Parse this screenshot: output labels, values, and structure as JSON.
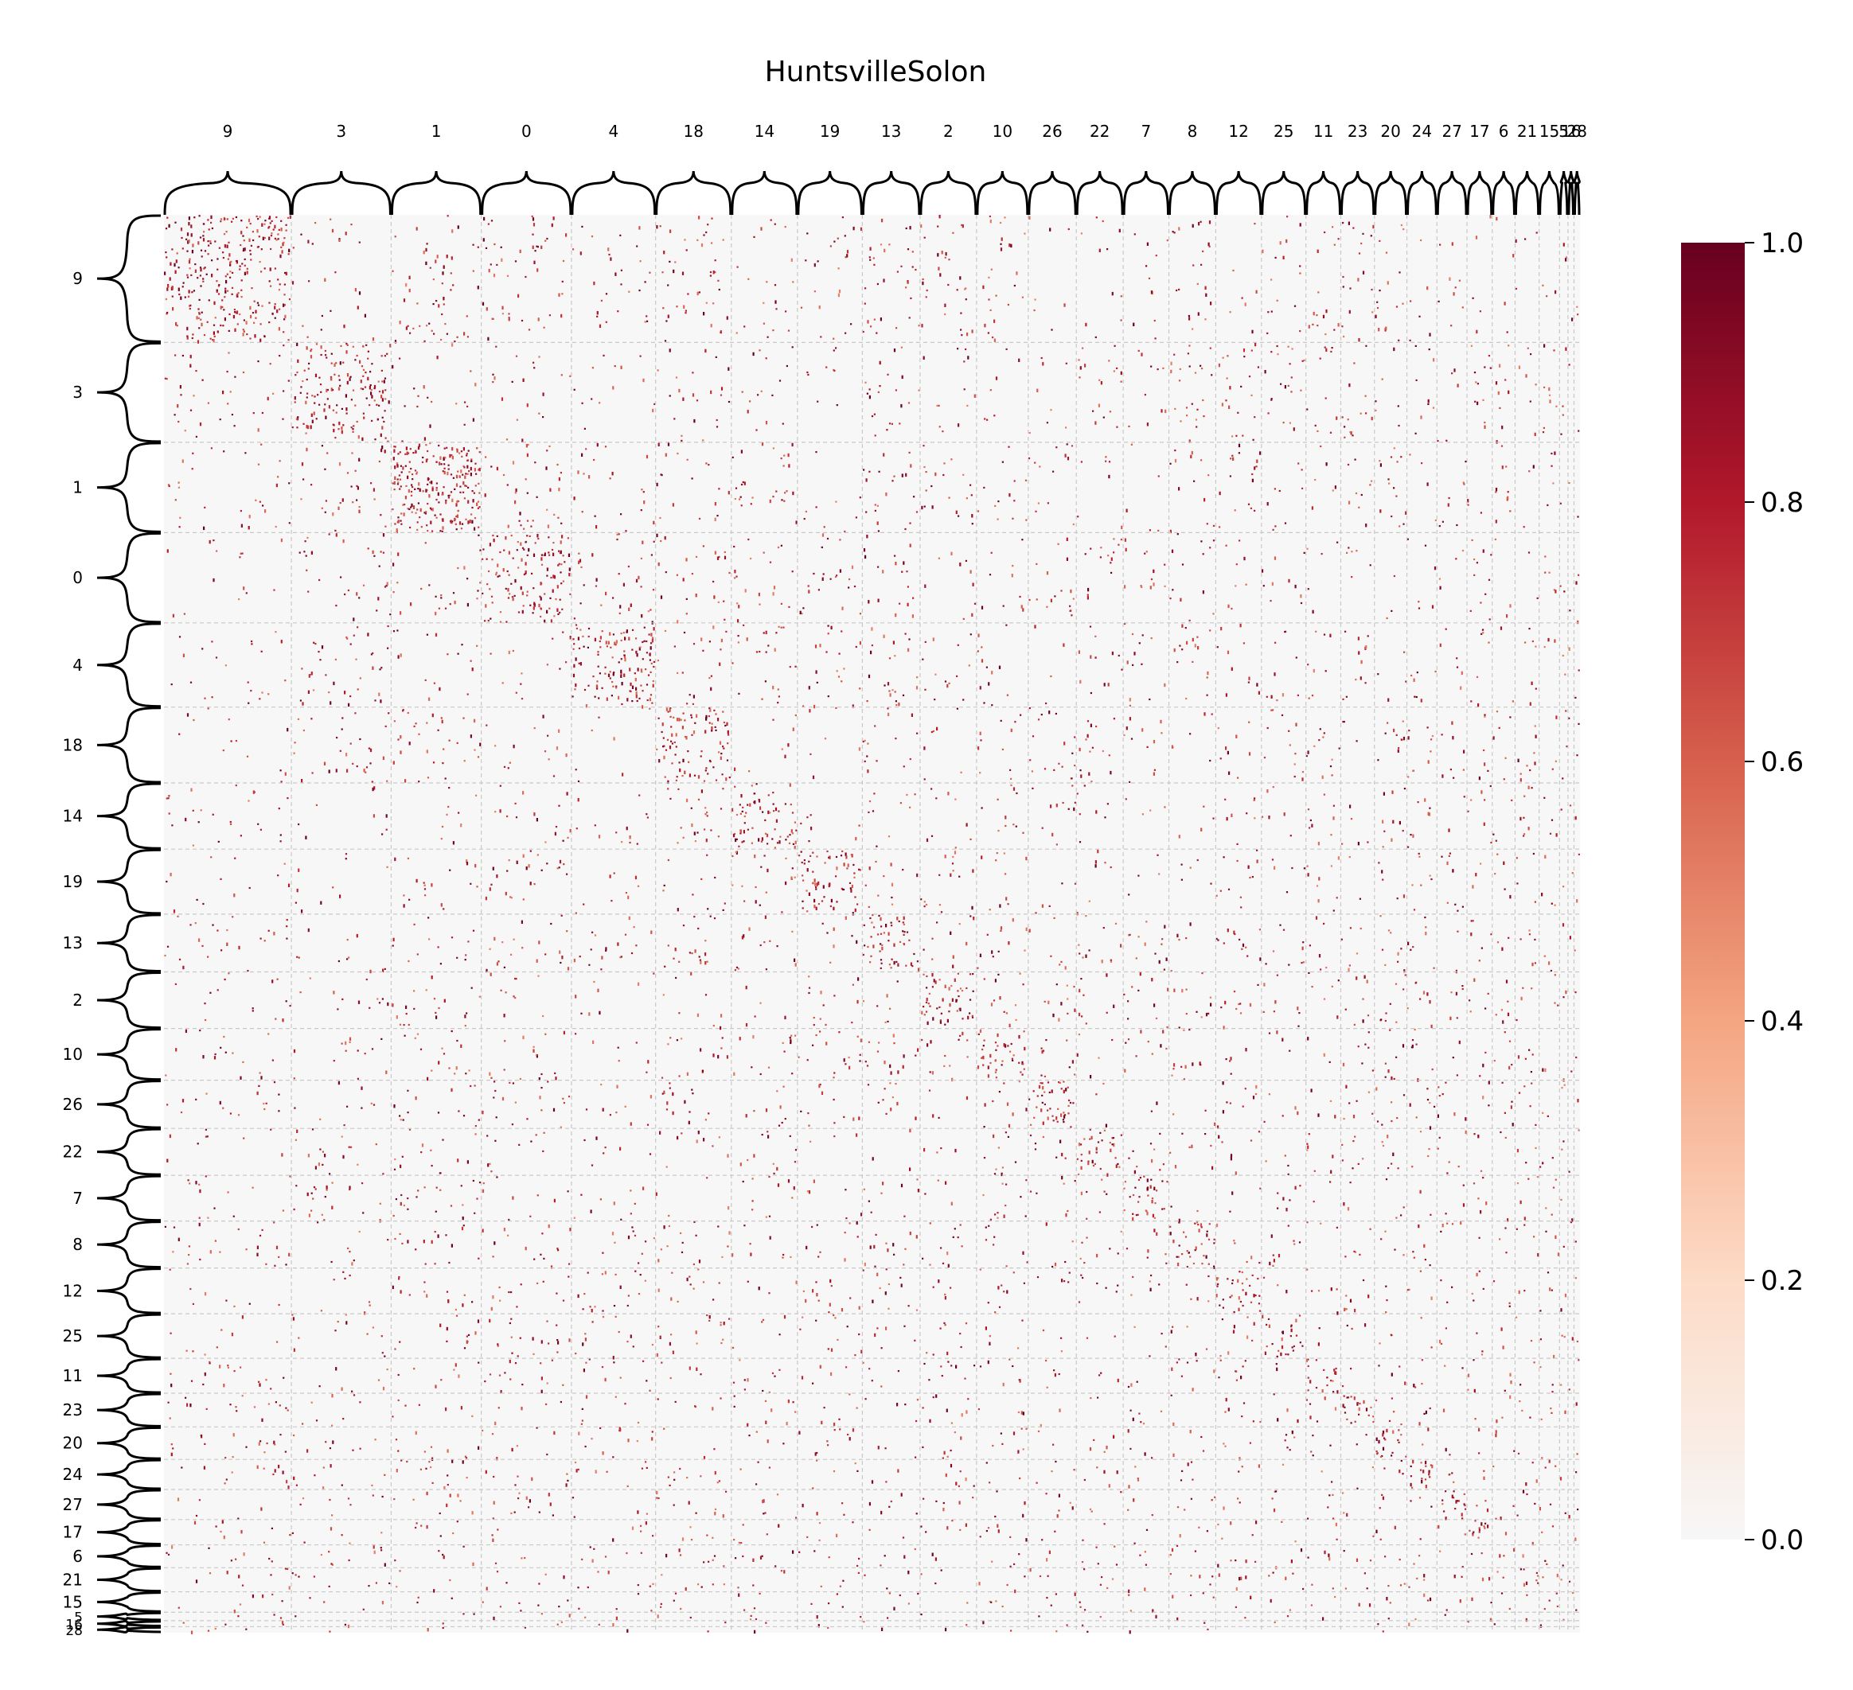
{
  "chart_data": {
    "type": "heatmap",
    "title": "HuntsvilleSolon",
    "xlabel": "",
    "ylabel": "",
    "block_order": [
      "9",
      "3",
      "1",
      "0",
      "4",
      "18",
      "14",
      "19",
      "13",
      "2",
      "10",
      "26",
      "22",
      "7",
      "8",
      "12",
      "25",
      "11",
      "23",
      "20",
      "24",
      "27",
      "17",
      "6",
      "21",
      "15",
      "5",
      "16",
      "28"
    ],
    "block_relative_sizes": [
      106,
      83,
      75,
      75,
      70,
      63,
      55,
      54,
      48,
      47,
      43,
      40,
      39,
      38,
      39,
      38,
      37,
      29,
      28,
      27,
      25,
      25,
      21,
      19,
      20,
      17,
      7,
      5,
      5
    ],
    "colorbar": {
      "min": 0.0,
      "max": 1.0,
      "ticks": [
        "0.0",
        "0.2",
        "0.4",
        "0.6",
        "0.8",
        "1.0"
      ],
      "colormap": "RdBu_r (upper half)",
      "colors": [
        "#f7f7f7",
        "#fddbc7",
        "#f4a582",
        "#d6604d",
        "#b2182b",
        "#67001f"
      ]
    },
    "within_block_density": [
      0.35,
      0.3,
      0.55,
      0.3,
      0.35,
      0.3,
      0.3,
      0.3,
      0.3,
      0.3,
      0.28,
      0.35,
      0.3,
      0.3,
      0.3,
      0.3,
      0.25,
      0.3,
      0.35,
      0.35,
      0.4,
      0.35,
      0.4,
      0.1,
      0.25,
      0.15,
      0.2,
      0.2,
      0.2
    ],
    "between_block_density": 0.004,
    "grid": true,
    "grid_style": "dashed light gray"
  }
}
